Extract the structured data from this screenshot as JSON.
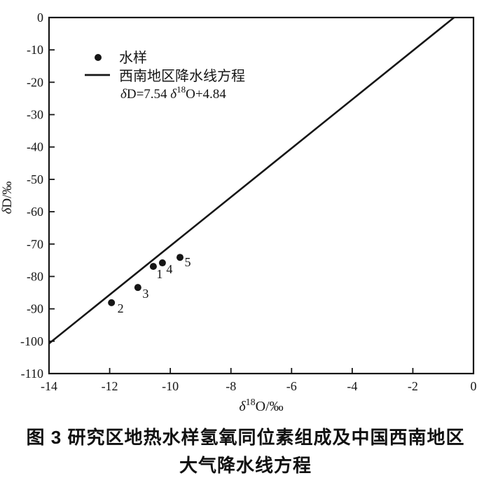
{
  "figure": {
    "caption_line1": "图 3  研究区地热水样氢氧同位素组成及中国西南地区",
    "caption_line2": "大气降水线方程"
  },
  "colors": {
    "ink": "#161616",
    "background": "#ffffff"
  },
  "chart_data": {
    "type": "scatter",
    "title": "",
    "xlabel": "δ18O/‰",
    "ylabel": "δD/‰",
    "xlabel_parts": {
      "delta": "δ",
      "sup": "18",
      "rest": "O/‰"
    },
    "ylabel_parts": {
      "delta": "δ",
      "rest": "D/‰"
    },
    "xlim": [
      -14,
      0
    ],
    "ylim": [
      -110,
      0
    ],
    "x_ticks": [
      "-14",
      "-12",
      "-10",
      "-8",
      "-6",
      "-4",
      "-2",
      "0"
    ],
    "x_tick_values": [
      -14,
      -12,
      -10,
      -8,
      -6,
      -4,
      -2,
      0
    ],
    "y_ticks": [
      "0",
      "-10",
      "-20",
      "-30",
      "-40",
      "-50",
      "-60",
      "-70",
      "-80",
      "-90",
      "-100",
      "-110"
    ],
    "y_tick_values": [
      0,
      -10,
      -20,
      -30,
      -40,
      -50,
      -60,
      -70,
      -80,
      -90,
      -100,
      -110
    ],
    "grid": false,
    "legend_position": "top-left",
    "series": [
      {
        "name": "水样",
        "type": "scatter",
        "points": [
          {
            "label": "1",
            "x": -10.56,
            "y": -76.9,
            "label_dx": 9,
            "label_dy": 17
          },
          {
            "label": "2",
            "x": -11.94,
            "y": -88.1,
            "label_dx": 13,
            "label_dy": 14
          },
          {
            "label": "3",
            "x": -11.07,
            "y": -83.4,
            "label_dx": 11,
            "label_dy": 15
          },
          {
            "label": "4",
            "x": -10.26,
            "y": -75.8,
            "label_dx": 10,
            "label_dy": 15
          },
          {
            "label": "5",
            "x": -9.68,
            "y": -74.1,
            "label_dx": 11,
            "label_dy": 13
          }
        ]
      },
      {
        "name": "西南地区降水线方程",
        "type": "line",
        "slope": 7.54,
        "intercept": 4.84,
        "equation": "δD=7.54 δ18O+4.84",
        "equation_parts": {
          "delta1": "δ",
          "p1": "D=7.54 ",
          "delta2": "δ",
          "sup": "18",
          "p2": "O+4.84"
        }
      }
    ]
  }
}
